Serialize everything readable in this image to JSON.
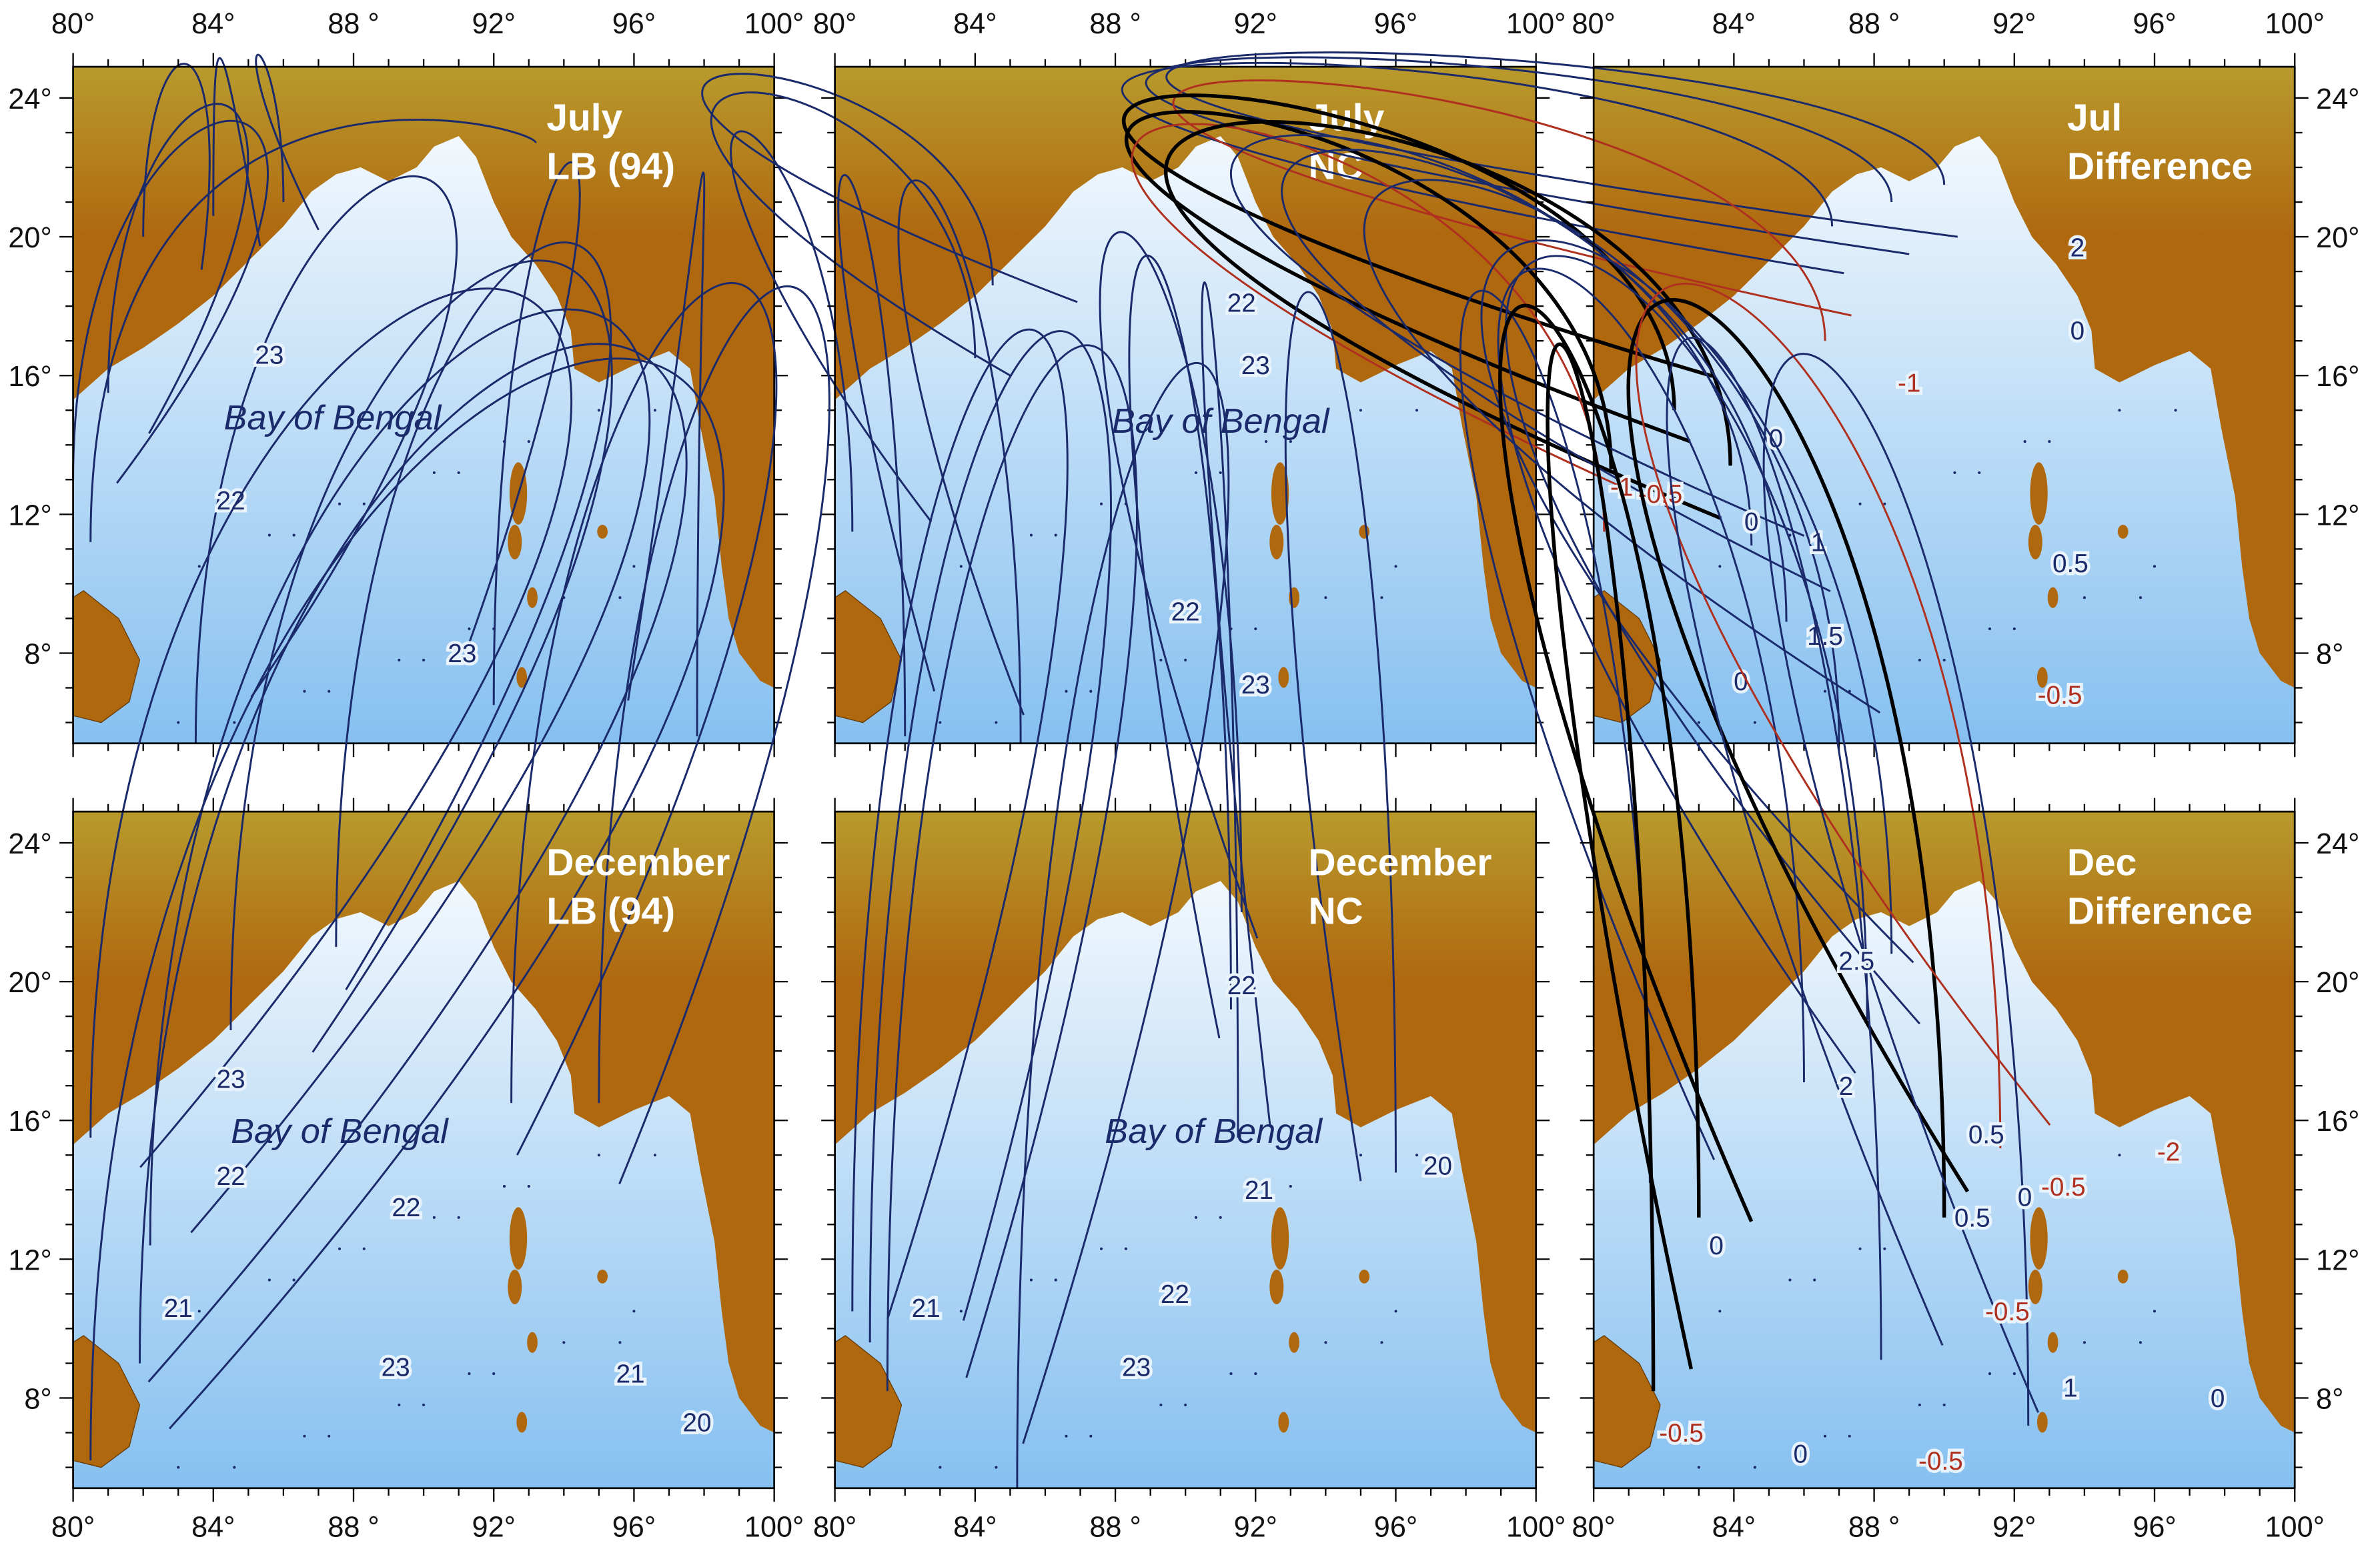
{
  "x_tick_labels": [
    "80°",
    "84°",
    "88 °",
    "92°",
    "96°",
    "100°"
  ],
  "y_tick_labels": [
    "24°",
    "20°",
    "16°",
    "12°",
    "8°"
  ],
  "panels": [
    {
      "title": [
        "July",
        "LB (94)"
      ],
      "place_label": "Bay of Bengal",
      "contour_labels": [
        "23",
        "22",
        "23"
      ]
    },
    {
      "title": [
        "July",
        "NC"
      ],
      "place_label": "Bay of Bengal",
      "contour_labels": [
        "22",
        "23",
        "22",
        "23"
      ]
    },
    {
      "title": [
        "Jul",
        "Difference"
      ],
      "contour_labels": [
        "2",
        "0",
        "-1",
        "0",
        "-1",
        "-0.5",
        "0",
        "1",
        "0.5",
        "1.5",
        "0",
        "-0.5"
      ]
    },
    {
      "title": [
        "December",
        "LB (94)"
      ],
      "place_label": "Bay of Bengal",
      "contour_labels": [
        "23",
        "22",
        "21",
        "22",
        "23",
        "21",
        "20"
      ]
    },
    {
      "title": [
        "December",
        "NC"
      ],
      "place_label": "Bay of Bengal",
      "contour_labels": [
        "22",
        "21",
        "20",
        "22",
        "21",
        "23"
      ]
    },
    {
      "title": [
        "Dec",
        "Difference"
      ],
      "contour_labels": [
        "2.5",
        "2",
        "0.5",
        "0.5",
        "0",
        "-0.5",
        "-2",
        "0",
        "-0.5",
        "1",
        "0",
        "-0.5",
        "0",
        "-0.5"
      ]
    }
  ]
}
